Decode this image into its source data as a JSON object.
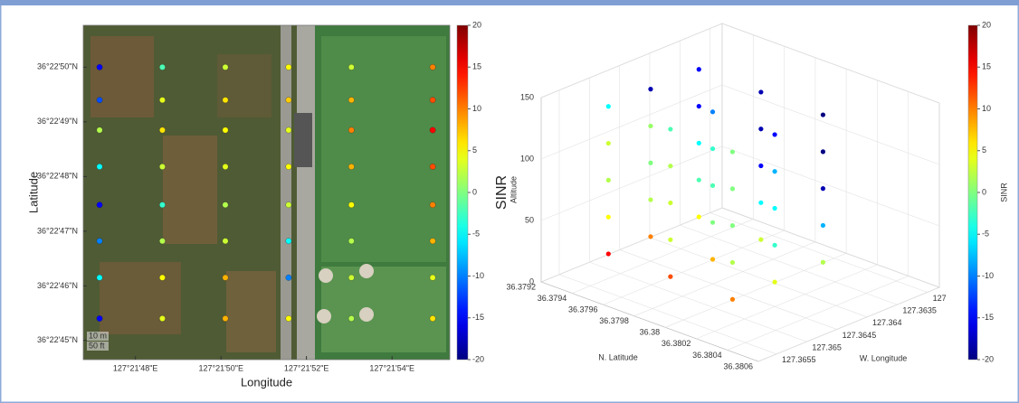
{
  "chart_data": [
    {
      "type": "scatter",
      "xlabel": "Longitude",
      "ylabel": "Latitude",
      "colorbar_label": "SINR",
      "scale_labels": [
        "10 m",
        "50 ft"
      ],
      "xlim": [
        127.362994,
        127.365375
      ],
      "ylim": [
        36.379069,
        36.380769
      ],
      "xticks": [
        {
          "value": 127.363333,
          "label": "127°21'48\"E"
        },
        {
          "value": 127.363889,
          "label": "127°21'50\"E"
        },
        {
          "value": 127.364444,
          "label": "127°21'52\"E"
        },
        {
          "value": 127.365,
          "label": "127°21'54\"E"
        }
      ],
      "yticks": [
        {
          "value": 36.379167,
          "label": "36°22'45\"N"
        },
        {
          "value": 36.379444,
          "label": "36°22'46\"N"
        },
        {
          "value": 36.379722,
          "label": "36°22'47\"N"
        },
        {
          "value": 36.38,
          "label": "36°22'48\"N"
        },
        {
          "value": 36.380278,
          "label": "36°22'49\"N"
        },
        {
          "value": 36.380556,
          "label": "36°22'50\"N"
        }
      ],
      "clim": [
        -20,
        20
      ],
      "cticks": [
        -20,
        -15,
        -10,
        -5,
        0,
        5,
        10,
        15,
        20
      ],
      "colormap": "jet",
      "x": [
        127.3631,
        127.363508,
        127.363917,
        127.364328,
        127.364736,
        127.365264,
        127.3631,
        127.363508,
        127.363917,
        127.364328,
        127.364736,
        127.365264,
        127.3631,
        127.363508,
        127.363917,
        127.364328,
        127.364736,
        127.365264,
        127.3631,
        127.363508,
        127.363917,
        127.364328,
        127.364736,
        127.365264,
        127.3631,
        127.363508,
        127.363917,
        127.364328,
        127.364736,
        127.365264,
        127.3631,
        127.363508,
        127.363917,
        127.364328,
        127.364736,
        127.365264,
        127.3631,
        127.363508,
        127.363917,
        127.364328,
        127.364736,
        127.365264,
        127.3631,
        127.363508,
        127.363917,
        127.364328,
        127.364736,
        127.365264
      ],
      "y": [
        36.380556,
        36.380556,
        36.380556,
        36.380556,
        36.380556,
        36.380556,
        36.380389,
        36.380389,
        36.380389,
        36.380389,
        36.380389,
        36.380389,
        36.380236,
        36.380236,
        36.380236,
        36.380236,
        36.380236,
        36.380236,
        36.38005,
        36.38005,
        36.38005,
        36.38005,
        36.38005,
        36.38005,
        36.379856,
        36.379856,
        36.379856,
        36.379856,
        36.379856,
        36.379856,
        36.379672,
        36.379672,
        36.379672,
        36.379672,
        36.379672,
        36.379672,
        36.379486,
        36.379486,
        36.379486,
        36.379486,
        36.379486,
        36.379486,
        36.379278,
        36.379278,
        36.379278,
        36.379278,
        36.379278,
        36.379278
      ],
      "values": [
        -15,
        -2,
        3,
        5,
        3,
        10,
        -12,
        4,
        6,
        7,
        8,
        12,
        2,
        6,
        5,
        4,
        10,
        15,
        -5,
        3,
        4,
        5,
        8,
        12,
        -15,
        -3,
        2,
        3,
        5,
        10,
        -10,
        2,
        3,
        -5,
        2,
        8,
        -5,
        5,
        8,
        -10,
        3,
        4,
        -15,
        4,
        8,
        5,
        2,
        6
      ]
    },
    {
      "type": "scatter3d",
      "xlabel": "N. Latitude",
      "ylabel": "W. Longitude",
      "zlabel": "Altitude",
      "colorbar_label": "SINR",
      "xlim": [
        36.3792,
        36.3806
      ],
      "ylim": [
        127.3628,
        127.3658
      ],
      "zlim": [
        0,
        150
      ],
      "xticks": [
        36.3792,
        36.3794,
        36.3796,
        36.3798,
        36.38,
        36.3802,
        36.3804,
        36.3806
      ],
      "yticks": [
        {
          "value": 127.363,
          "label": "127"
        },
        127.3635,
        127.364,
        127.3645,
        127.365,
        127.3655
      ],
      "zticks": [
        0,
        50,
        100,
        150
      ],
      "clim": [
        -20,
        20
      ],
      "cticks": [
        -20,
        -15,
        -10,
        -5,
        0,
        5,
        10,
        15,
        20
      ],
      "colormap": "jet",
      "grid": true,
      "x": [
        36.3794,
        36.3794,
        36.3794,
        36.3798,
        36.3798,
        36.3798,
        36.3802,
        36.3802,
        36.3802,
        36.3794,
        36.3794,
        36.3794,
        36.3798,
        36.3798,
        36.3798,
        36.3802,
        36.3802,
        36.3802,
        36.3794,
        36.3794,
        36.3794,
        36.3798,
        36.3798,
        36.3798,
        36.3802,
        36.3802,
        36.3802,
        36.3794,
        36.3794,
        36.3794,
        36.3798,
        36.3798,
        36.3798,
        36.3802,
        36.3802,
        36.3802,
        36.3794,
        36.3794,
        36.3794,
        36.3798,
        36.3798,
        36.3798,
        36.3802,
        36.3802,
        36.3802
      ],
      "y": [
        127.3652,
        127.3645,
        127.3637,
        127.3652,
        127.3645,
        127.3637,
        127.3652,
        127.3645,
        127.3637,
        127.3652,
        127.3645,
        127.3637,
        127.3652,
        127.3645,
        127.3637,
        127.3652,
        127.3645,
        127.3637,
        127.3652,
        127.3645,
        127.3637,
        127.3652,
        127.3645,
        127.3637,
        127.3652,
        127.3645,
        127.3637,
        127.3652,
        127.3645,
        127.3637,
        127.3652,
        127.3645,
        127.3637,
        127.3652,
        127.3645,
        127.3637,
        127.3652,
        127.3645,
        127.3637,
        127.3652,
        127.3645,
        127.3637,
        127.3652,
        127.3645,
        127.3637
      ],
      "z": [
        20,
        20,
        20,
        20,
        20,
        20,
        20,
        20,
        20,
        50,
        50,
        50,
        50,
        50,
        50,
        50,
        50,
        50,
        80,
        80,
        80,
        80,
        80,
        80,
        80,
        80,
        80,
        110,
        110,
        110,
        110,
        110,
        110,
        110,
        110,
        110,
        140,
        140,
        140,
        140,
        140,
        140,
        140,
        140,
        140
      ],
      "values": [
        15,
        10,
        5,
        12,
        8,
        3,
        10,
        4,
        2,
        5,
        2,
        -2,
        3,
        0,
        -5,
        2,
        -3,
        -8,
        2,
        0,
        -5,
        3,
        -2,
        -15,
        0,
        -5,
        -18,
        3,
        1,
        -15,
        2,
        -3,
        -18,
        0,
        -8,
        -20,
        -5,
        -18,
        -15,
        -2,
        -10,
        -18,
        0,
        -15,
        -20
      ]
    }
  ]
}
